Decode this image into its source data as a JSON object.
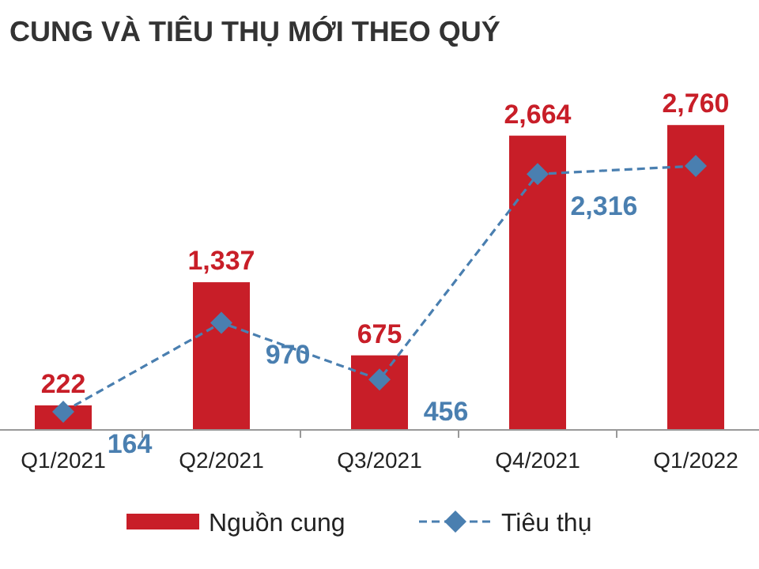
{
  "chart_data": {
    "type": "bar",
    "title": "CUNG VÀ TIÊU THỤ MỚI THEO QUÝ",
    "categories": [
      "Q1/2021",
      "Q2/2021",
      "Q3/2021",
      "Q4/2021",
      "Q1/2022"
    ],
    "tick_labels": "x",
    "legend": "bottom",
    "series": [
      {
        "name": "Nguồn cung",
        "color": "#c81e28",
        "values": [
          222,
          1337,
          675,
          2664,
          2760
        ],
        "value_labels": [
          "222",
          "1,337",
          "675",
          "2,664",
          "2,760"
        ]
      },
      {
        "name": "Tiêu thụ",
        "type": "line",
        "color": "#4a7fb0",
        "marker": "diamond",
        "line_style": "dashed",
        "values": [
          164,
          970,
          456,
          2316,
          2390
        ],
        "value_labels": [
          "164",
          "970",
          "456",
          "2,316",
          null
        ]
      }
    ]
  }
}
